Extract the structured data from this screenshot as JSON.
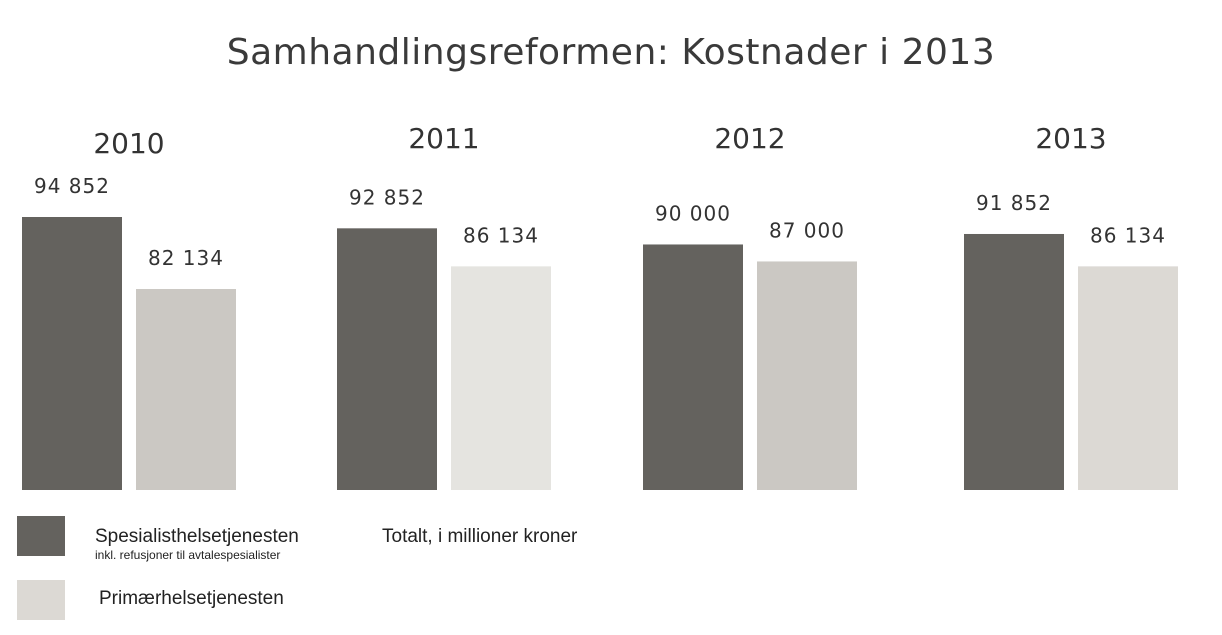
{
  "chart_data": {
    "type": "bar",
    "title": "Samhandlingsreformen: Kostnader i 2013",
    "categories": [
      "2010",
      "2011",
      "2012",
      "2013"
    ],
    "series": [
      {
        "name": "Spesialisthelsetjenesten",
        "name_sub": "inkl. refusjoner til avtalespesialister",
        "values": [
          94852,
          92852,
          90000,
          91852
        ],
        "labels": [
          "94 852",
          "92 852",
          "90 000",
          "91 852"
        ],
        "colors": [
          "#64625e",
          "#64625e",
          "#64625e",
          "#64625e"
        ]
      },
      {
        "name": "Primærhelsetjenesten",
        "values": [
          82134,
          86134,
          87000,
          86134
        ],
        "labels": [
          "82 134",
          "86 134",
          "87 000",
          "86 134"
        ],
        "colors": [
          "#cbc8c3",
          "#e5e4e0",
          "#cbc8c3",
          "#dcd9d4"
        ]
      }
    ],
    "note": "Totalt, i millioner kroner",
    "legend": "bottom-left",
    "grid": false
  }
}
